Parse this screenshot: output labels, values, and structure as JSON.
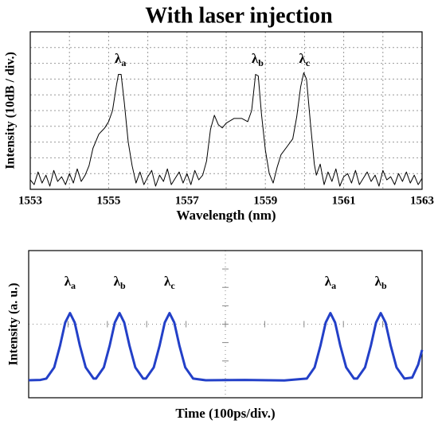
{
  "chart_data": [
    {
      "type": "line",
      "title": "With laser injection",
      "xlabel": "Wavelength (nm)",
      "ylabel": "Intensity (10dB / div.)",
      "xlim": [
        1553,
        1563
      ],
      "xticks": [
        1553,
        1555,
        1557,
        1559,
        1561,
        1563
      ],
      "xminor": [
        1554,
        1556,
        1558,
        1560,
        1562
      ],
      "ylim": [
        0,
        10
      ],
      "yticks": [
        0,
        1,
        2,
        3,
        4,
        5,
        6,
        7,
        8,
        9,
        10
      ],
      "grid": "dotted",
      "tick_labels": true,
      "series": [
        {
          "color": "#000000",
          "x": [
            1553,
            1553.1,
            1553.2,
            1553.3,
            1553.4,
            1553.5,
            1553.6,
            1553.7,
            1553.8,
            1553.9,
            1554,
            1554.1,
            1554.2,
            1554.3,
            1554.4,
            1554.5,
            1554.6,
            1554.75,
            1554.9,
            1555,
            1555.1,
            1555.2,
            1555.25,
            1555.32,
            1555.4,
            1555.5,
            1555.6,
            1555.7,
            1555.8,
            1555.9,
            1556,
            1556.1,
            1556.2,
            1556.3,
            1556.4,
            1556.5,
            1556.6,
            1556.7,
            1556.8,
            1556.9,
            1557,
            1557.1,
            1557.2,
            1557.3,
            1557.4,
            1557.5,
            1557.6,
            1557.7,
            1557.8,
            1557.9,
            1558,
            1558.2,
            1558.4,
            1558.55,
            1558.65,
            1558.75,
            1558.82,
            1558.9,
            1559,
            1559.1,
            1559.2,
            1559.3,
            1559.4,
            1559.55,
            1559.7,
            1559.8,
            1559.9,
            1559.98,
            1560.05,
            1560.15,
            1560.25,
            1560.3,
            1560.4,
            1560.5,
            1560.6,
            1560.7,
            1560.8,
            1560.9,
            1561,
            1561.1,
            1561.2,
            1561.3,
            1561.4,
            1561.5,
            1561.6,
            1561.7,
            1561.8,
            1561.9,
            1562,
            1562.1,
            1562.2,
            1562.3,
            1562.4,
            1562.5,
            1562.6,
            1562.7,
            1562.8,
            1562.9,
            1563
          ],
          "values": [
            0.6,
            0.3,
            1.1,
            0.4,
            0.9,
            0.2,
            1.2,
            0.5,
            0.8,
            0.3,
            1.0,
            0.4,
            1.3,
            0.5,
            0.9,
            1.5,
            2.6,
            3.5,
            3.9,
            4.3,
            5.0,
            6.6,
            7.3,
            7.3,
            5.5,
            3.0,
            1.5,
            0.4,
            1.1,
            0.3,
            0.8,
            1.2,
            0.2,
            0.9,
            0.5,
            1.3,
            0.3,
            0.7,
            1.1,
            0.4,
            1.0,
            0.3,
            1.2,
            0.6,
            0.9,
            1.8,
            3.8,
            4.7,
            4.1,
            3.9,
            4.2,
            4.5,
            4.5,
            4.3,
            5.0,
            7.3,
            7.2,
            4.8,
            2.5,
            1.0,
            0.4,
            1.4,
            2.2,
            2.7,
            3.2,
            4.6,
            6.5,
            7.4,
            7.0,
            4.2,
            1.6,
            0.9,
            1.6,
            0.3,
            1.1,
            0.5,
            1.3,
            0.2,
            0.8,
            1.0,
            0.4,
            1.2,
            0.3,
            0.7,
            1.1,
            0.5,
            0.9,
            0.2,
            1.2,
            0.6,
            0.8,
            0.3,
            1.0,
            0.5,
            1.1,
            0.4,
            0.9,
            0.3,
            0.7
          ]
        }
      ],
      "annotations": [
        {
          "symbol": "λ",
          "subscript": "a",
          "x": 1555.3
        },
        {
          "symbol": "λ",
          "subscript": "b",
          "x": 1558.8
        },
        {
          "symbol": "λ",
          "subscript": "c",
          "x": 1560.0
        }
      ]
    },
    {
      "type": "line",
      "xlabel": "Time (100ps/div.)",
      "ylabel": "Intensity (a. u.)",
      "xlim": [
        0,
        10
      ],
      "xticks": [
        0,
        1,
        2,
        3,
        4,
        5,
        6,
        7,
        8,
        9,
        10
      ],
      "ylim": [
        0,
        8
      ],
      "yticks": [
        0,
        1,
        2,
        3,
        4,
        5,
        6,
        7,
        8
      ],
      "grid": "center",
      "tick_labels": false,
      "series": [
        {
          "color": "#2340c8",
          "x": [
            0,
            0.3,
            0.45,
            0.65,
            0.8,
            0.93,
            1.05,
            1.17,
            1.3,
            1.45,
            1.65,
            1.71,
            1.91,
            2.06,
            2.19,
            2.31,
            2.43,
            2.56,
            2.71,
            2.91,
            2.98,
            3.18,
            3.33,
            3.46,
            3.58,
            3.7,
            3.83,
            3.98,
            4.18,
            4.5,
            5.5,
            6.5,
            7.07,
            7.27,
            7.42,
            7.55,
            7.67,
            7.79,
            7.92,
            8.07,
            8.27,
            8.35,
            8.55,
            8.7,
            8.83,
            8.95,
            9.07,
            9.2,
            9.35,
            9.55,
            9.75,
            9.9,
            10
          ],
          "values": [
            0.95,
            0.97,
            1.04,
            1.65,
            2.85,
            4.09,
            4.6,
            4.09,
            2.85,
            1.65,
            1.04,
            1.04,
            1.65,
            2.85,
            4.09,
            4.6,
            4.09,
            2.85,
            1.65,
            1.04,
            1.04,
            1.65,
            2.85,
            4.09,
            4.6,
            4.09,
            2.85,
            1.65,
            1.04,
            0.95,
            0.97,
            0.94,
            1.04,
            1.65,
            2.85,
            4.09,
            4.6,
            4.09,
            2.85,
            1.65,
            1.04,
            1.04,
            1.65,
            2.85,
            4.09,
            4.6,
            4.09,
            2.85,
            1.65,
            1.04,
            1.1,
            1.8,
            2.6
          ]
        }
      ],
      "annotations": [
        {
          "symbol": "λ",
          "subscript": "a",
          "x": 1.05
        },
        {
          "symbol": "λ",
          "subscript": "b",
          "x": 2.31
        },
        {
          "symbol": "λ",
          "subscript": "c",
          "x": 3.58
        },
        {
          "symbol": "λ",
          "subscript": "a",
          "x": 7.67
        },
        {
          "symbol": "λ",
          "subscript": "b",
          "x": 8.95
        }
      ]
    }
  ]
}
